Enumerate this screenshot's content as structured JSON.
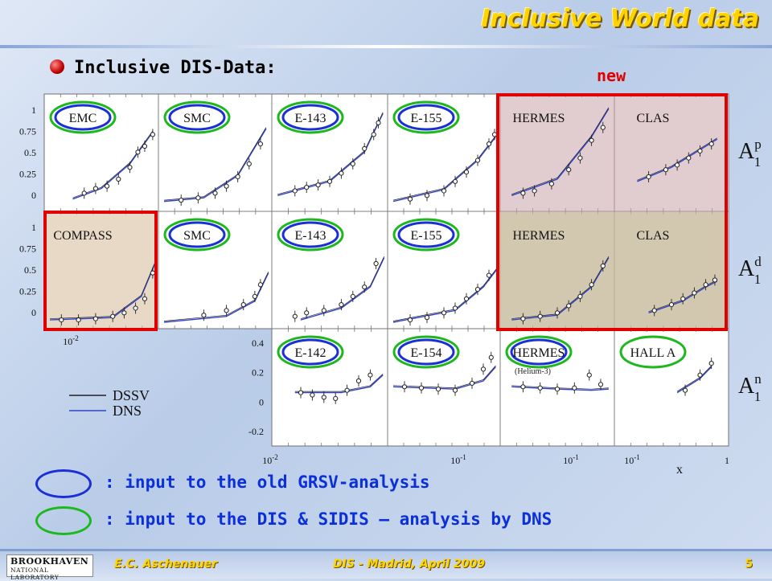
{
  "header": {
    "title": "Inclusive World data",
    "subtitle": "Inclusive DIS-Data:",
    "new_label": "new"
  },
  "figure": {
    "row_labels": [
      {
        "base": "A",
        "sub": "1",
        "sup": "p"
      },
      {
        "base": "A",
        "sub": "1",
        "sup": "d"
      },
      {
        "base": "A",
        "sub": "1",
        "sup": "n"
      }
    ],
    "y_ticks_top": [
      "1",
      "0.75",
      "0.5",
      "0.25",
      "0"
    ],
    "y_ticks_mid": [
      "1",
      "0.75",
      "0.5",
      "0.25",
      "0"
    ],
    "y_ticks_bottom": [
      "0.4",
      "0.2",
      "0",
      "-0.2"
    ],
    "x_tick_labels": {
      "compass": "10-2",
      "bottom": [
        "10-2",
        "10-1",
        "10-1",
        "10-1",
        "1"
      ]
    },
    "x_axis_label": "x",
    "legend": [
      {
        "label": "DSSV",
        "color": "#222222"
      },
      {
        "label": "DNS",
        "color": "#3344cc"
      }
    ],
    "panels": [
      {
        "label": "EMC",
        "row": 0,
        "col": 0,
        "blue": true,
        "green": true
      },
      {
        "label": "SMC",
        "row": 0,
        "col": 1,
        "blue": true,
        "green": true
      },
      {
        "label": "E-143",
        "row": 0,
        "col": 2,
        "blue": true,
        "green": true
      },
      {
        "label": "E-155",
        "row": 0,
        "col": 3,
        "blue": true,
        "green": true
      },
      {
        "label": "HERMES",
        "row": 0,
        "col": 4,
        "blue": false,
        "green": false
      },
      {
        "label": "CLAS",
        "row": 0,
        "col": 5,
        "blue": false,
        "green": false
      },
      {
        "label": "COMPASS",
        "row": 1,
        "col": 0,
        "blue": false,
        "green": false
      },
      {
        "label": "SMC",
        "row": 1,
        "col": 1,
        "blue": true,
        "green": true
      },
      {
        "label": "E-143",
        "row": 1,
        "col": 2,
        "blue": true,
        "green": true
      },
      {
        "label": "E-155",
        "row": 1,
        "col": 3,
        "blue": true,
        "green": true
      },
      {
        "label": "HERMES",
        "row": 1,
        "col": 4,
        "blue": false,
        "green": false
      },
      {
        "label": "CLAS",
        "row": 1,
        "col": 5,
        "blue": false,
        "green": false
      },
      {
        "label": "E-142",
        "row": 2,
        "col": 2,
        "blue": true,
        "green": true
      },
      {
        "label": "E-154",
        "row": 2,
        "col": 3,
        "blue": true,
        "green": true
      },
      {
        "label": "HERMES",
        "row": 2,
        "col": 4,
        "blue": true,
        "green": true
      },
      {
        "label": "HALL A",
        "row": 2,
        "col": 5,
        "blue": false,
        "green": true
      }
    ],
    "hermes_note": "(Helium-3)"
  },
  "legend_items": [
    {
      "text": ": input to the old GRSV-analysis",
      "oval_color": "#1a2fd6"
    },
    {
      "text": ": input to the DIS & SIDIS – analysis by DNS",
      "oval_color": "#1db81d"
    }
  ],
  "footer": {
    "logo_line1": "BROOKHAVEN",
    "logo_line2": "NATIONAL LABORATORY",
    "author": "E.C. Aschenauer",
    "conference": "DIS - Madrid, April 2009",
    "page": "5"
  },
  "colors": {
    "title": "#ffd400",
    "highlight_box": "#e00000",
    "blue_oval": "#1a2fd6",
    "green_oval": "#1db81d",
    "curve_dns": "#3344cc",
    "curve_dssv": "#222222"
  }
}
